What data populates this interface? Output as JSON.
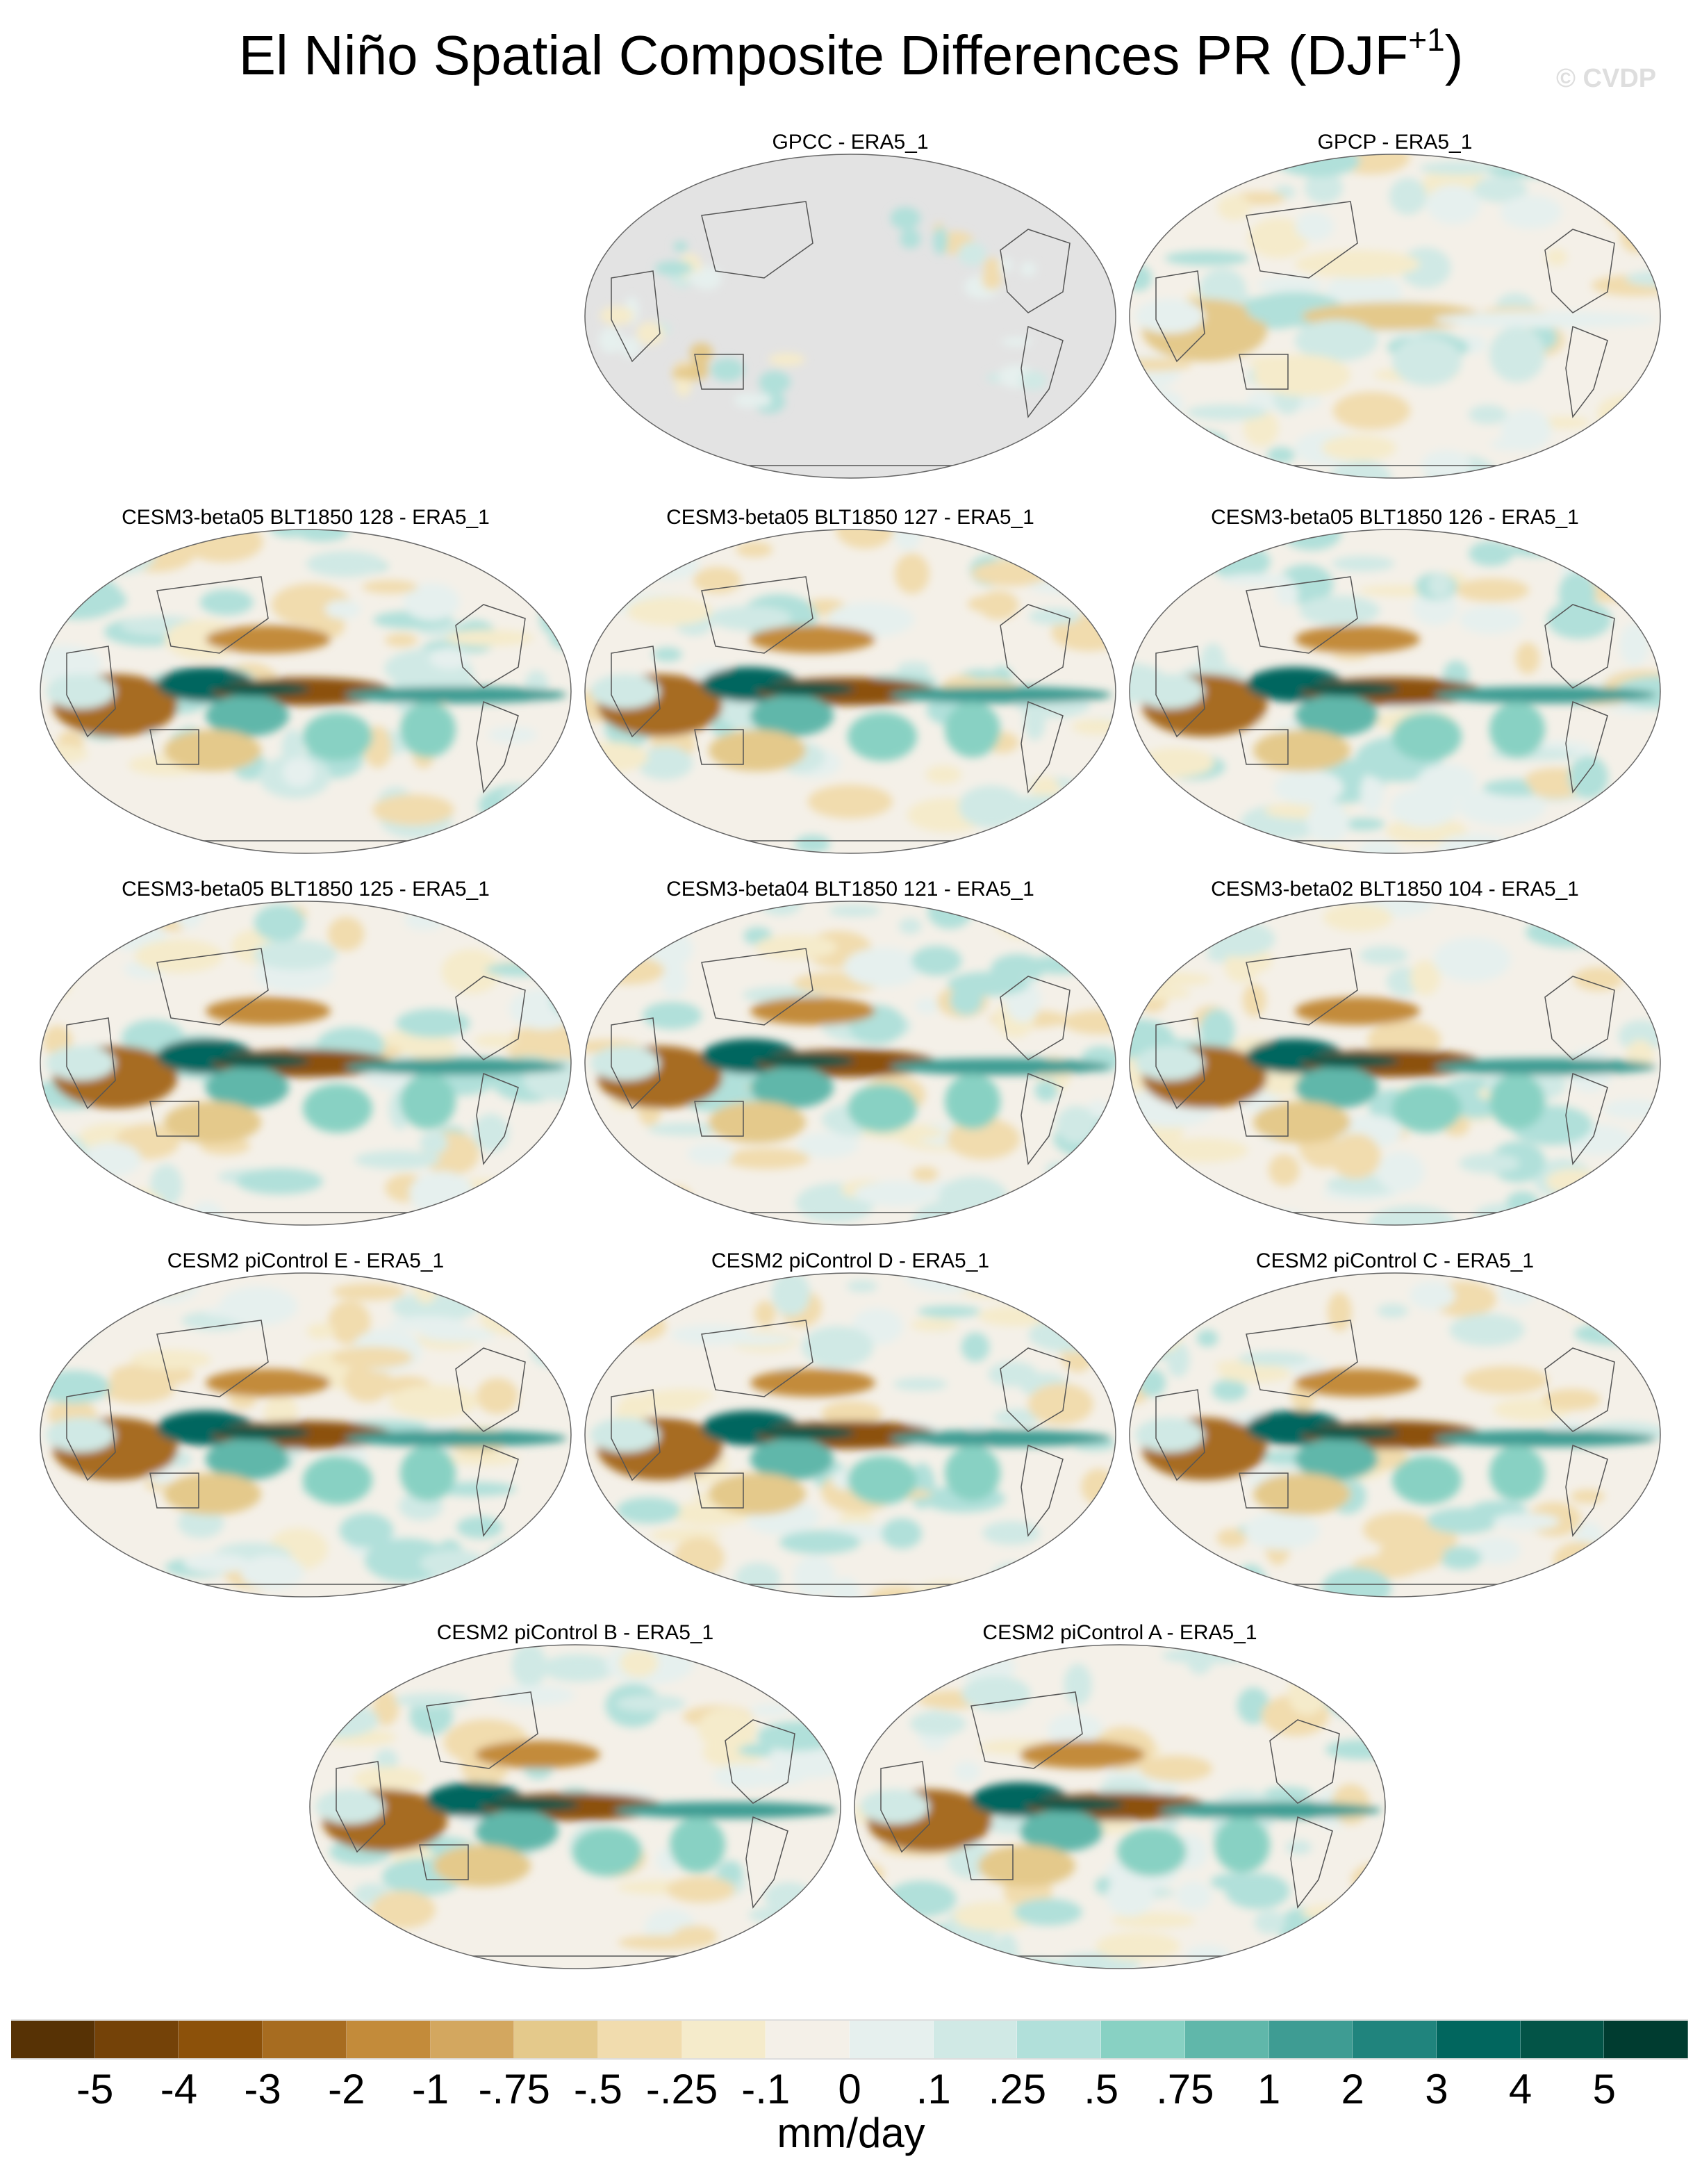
{
  "chart_data": {
    "type": "heatmap",
    "title": "El Niño Spatial Composite Differences PR (DJF",
    "title_superscript": "+1",
    "title_suffix": ")",
    "watermark": "© CVDP",
    "projection": "Robinson global map, Pacific-centered",
    "panels": [
      {
        "title": "GPCC - ERA5_1",
        "ocean_masked": true
      },
      {
        "title": "GPCP - ERA5_1",
        "ocean_masked": false
      },
      {
        "title": "CESM3-beta05 BLT1850 128 - ERA5_1",
        "ocean_masked": false
      },
      {
        "title": "CESM3-beta05 BLT1850 127 - ERA5_1",
        "ocean_masked": false
      },
      {
        "title": "CESM3-beta05 BLT1850 126 - ERA5_1",
        "ocean_masked": false
      },
      {
        "title": "CESM3-beta05 BLT1850 125 - ERA5_1",
        "ocean_masked": false
      },
      {
        "title": "CESM3-beta04 BLT1850 121 - ERA5_1",
        "ocean_masked": false
      },
      {
        "title": "CESM3-beta02 BLT1850 104 - ERA5_1",
        "ocean_masked": false
      },
      {
        "title": "CESM2 piControl E - ERA5_1",
        "ocean_masked": false
      },
      {
        "title": "CESM2 piControl D - ERA5_1",
        "ocean_masked": false
      },
      {
        "title": "CESM2 piControl C - ERA5_1",
        "ocean_masked": false
      },
      {
        "title": "CESM2 piControl B - ERA5_1",
        "ocean_masked": false
      },
      {
        "title": "CESM2 piControl A - ERA5_1",
        "ocean_masked": false
      }
    ],
    "colorbar": {
      "labels": [
        "-5",
        "-4",
        "-3",
        "-2",
        "-1",
        "-.75",
        "-.5",
        "-.25",
        "-.1",
        "0",
        ".1",
        ".25",
        ".5",
        ".75",
        "1",
        "2",
        "3",
        "4",
        "5"
      ],
      "colors": [
        "#573205",
        "#744208",
        "#8c510a",
        "#a76c20",
        "#c38b3a",
        "#d3a75f",
        "#e4c98b",
        "#f1dcae",
        "#f5ebcb",
        "#f4f0e8",
        "#e6f0ee",
        "#d0e9e5",
        "#b1e0da",
        "#88d1c3",
        "#60b7aa",
        "#3e9c93",
        "#20847d",
        "#01665e",
        "#035447",
        "#003c30"
      ],
      "units": "mm/day"
    }
  }
}
